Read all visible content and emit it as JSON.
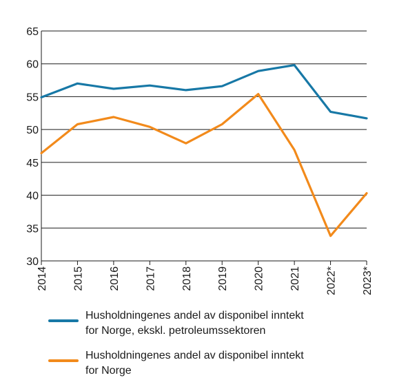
{
  "chart_data": {
    "type": "line",
    "title": "",
    "xlabel": "",
    "ylabel": "",
    "categories": [
      "2014",
      "2015",
      "2016",
      "2017",
      "2018",
      "2019",
      "2020",
      "2021",
      "2022*",
      "2023*"
    ],
    "ylim": [
      30,
      65
    ],
    "yticks": [
      30,
      35,
      40,
      45,
      50,
      55,
      60,
      65
    ],
    "grid": true,
    "legend_position": "bottom",
    "series": [
      {
        "name": "Husholdningenes andel av disponibel inntekt for Norge, ekskl. petroleumssektoren",
        "name_lines": [
          "Husholdningenes andel av disponibel inntekt",
          "for Norge, ekskl. petroleumssektoren"
        ],
        "color": "#1778a6",
        "values": [
          54.9,
          57.0,
          56.2,
          56.7,
          56.0,
          56.6,
          58.9,
          59.8,
          52.7,
          51.7
        ]
      },
      {
        "name": "Husholdningenes andel av disponibel inntekt for Norge",
        "name_lines": [
          "Husholdningenes andel av disponibel inntekt",
          "for Norge"
        ],
        "color": "#f28a1b",
        "values": [
          46.4,
          50.8,
          51.9,
          50.4,
          47.9,
          50.8,
          55.4,
          46.9,
          33.8,
          40.3
        ]
      }
    ]
  }
}
